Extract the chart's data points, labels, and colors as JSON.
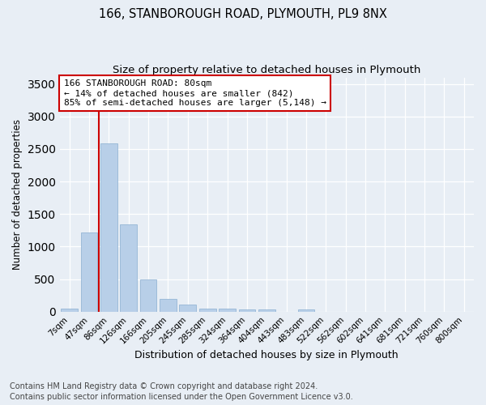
{
  "title_line1": "166, STANBOROUGH ROAD, PLYMOUTH, PL9 8NX",
  "title_line2": "Size of property relative to detached houses in Plymouth",
  "xlabel": "Distribution of detached houses by size in Plymouth",
  "ylabel": "Number of detached properties",
  "categories": [
    "7sqm",
    "47sqm",
    "86sqm",
    "126sqm",
    "166sqm",
    "205sqm",
    "245sqm",
    "285sqm",
    "324sqm",
    "364sqm",
    "404sqm",
    "443sqm",
    "483sqm",
    "522sqm",
    "562sqm",
    "602sqm",
    "641sqm",
    "681sqm",
    "721sqm",
    "760sqm",
    "800sqm"
  ],
  "values": [
    50,
    1220,
    2580,
    1340,
    500,
    190,
    105,
    50,
    45,
    30,
    28,
    0,
    35,
    0,
    0,
    0,
    0,
    0,
    0,
    0,
    0
  ],
  "bar_color": "#b8cfe8",
  "bar_edgecolor": "#8aaed0",
  "vline_x_index": 2,
  "vline_color": "#cc0000",
  "ylim": [
    0,
    3600
  ],
  "yticks": [
    0,
    500,
    1000,
    1500,
    2000,
    2500,
    3000,
    3500
  ],
  "annotation_text": "166 STANBOROUGH ROAD: 80sqm\n← 14% of detached houses are smaller (842)\n85% of semi-detached houses are larger (5,148) →",
  "annotation_box_facecolor": "#ffffff",
  "annotation_border_color": "#cc0000",
  "footer_line1": "Contains HM Land Registry data © Crown copyright and database right 2024.",
  "footer_line2": "Contains public sector information licensed under the Open Government Licence v3.0.",
  "bg_color": "#e8eef5",
  "plot_bg_color": "#e8eef5",
  "grid_color": "#ffffff",
  "title_fontsize": 10.5,
  "subtitle_fontsize": 9.5,
  "tick_fontsize": 7.5,
  "ylabel_fontsize": 8.5,
  "xlabel_fontsize": 9,
  "footer_fontsize": 7,
  "annotation_fontsize": 8
}
